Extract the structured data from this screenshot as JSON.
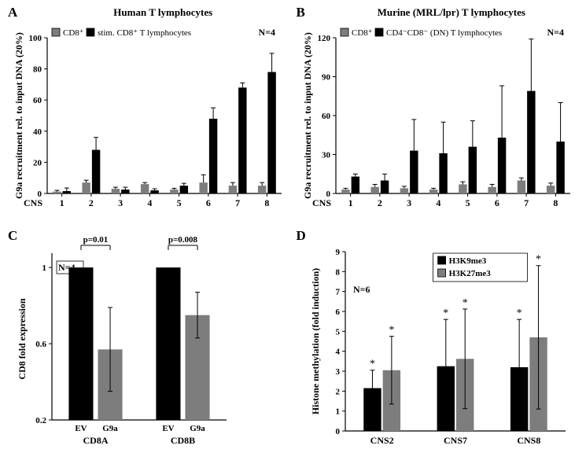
{
  "A": {
    "label": "A",
    "title": "Human T lymphocytes",
    "type": "bar",
    "y_title": "G9a recruitment rel. to input DNA (20%)",
    "x_title": "CNS",
    "categories": [
      "1",
      "2",
      "3",
      "4",
      "5",
      "6",
      "7",
      "8"
    ],
    "series1_name": "CD8⁺",
    "series2_name": "stim. CD8⁺ T lymphocytes",
    "series1_values": [
      1.2,
      7,
      3,
      6,
      2.5,
      7,
      5,
      5
    ],
    "series1_err": [
      0.8,
      1.5,
      1,
      1,
      0.8,
      5,
      2,
      2
    ],
    "series2_values": [
      1.5,
      28,
      2.5,
      2,
      5,
      48,
      68,
      78
    ],
    "series2_err": [
      2,
      8,
      1.5,
      1,
      1.5,
      7,
      3,
      12
    ],
    "ylim": [
      0,
      100
    ],
    "ytick_step": 20,
    "n_label": "N=4",
    "series1_color": "#7d7d7d",
    "series2_color": "#000000",
    "bg": "#ffffff",
    "axis_color": "#000000"
  },
  "B": {
    "label": "B",
    "title": "Murine (MRL/lpr) T lymphocytes",
    "type": "bar",
    "y_title": "G9a recruitment rel. to input DNA (20%)",
    "x_title": "CNS",
    "categories": [
      "1",
      "2",
      "3",
      "4",
      "5",
      "6",
      "7",
      "8"
    ],
    "series1_name": "CD8⁺",
    "series2_name": "CD4⁻CD8⁻ (DN) T lymphocytes",
    "series1_values": [
      3,
      5,
      4,
      3,
      7,
      5,
      10,
      6
    ],
    "series1_err": [
      1,
      2,
      1.5,
      1,
      2,
      2,
      2,
      2
    ],
    "series2_values": [
      13,
      10,
      33,
      31,
      36,
      43,
      79,
      40
    ],
    "series2_err": [
      2,
      5,
      24,
      24,
      20,
      40,
      40,
      30
    ],
    "ylim": [
      0,
      120
    ],
    "ytick_step": 30,
    "n_label": "N=4",
    "series1_color": "#7d7d7d",
    "series2_color": "#000000",
    "bg": "#ffffff",
    "axis_color": "#000000"
  },
  "C": {
    "label": "C",
    "type": "bar",
    "y_title": "CD8 fold expression",
    "categories": [
      "CD8A",
      "CD8B"
    ],
    "sub_categories": [
      "EV",
      "G9a"
    ],
    "values": [
      [
        1.0,
        0.57
      ],
      [
        1.0,
        0.75
      ]
    ],
    "err": [
      [
        0,
        0.22
      ],
      [
        0,
        0.12
      ]
    ],
    "colors": [
      "#000000",
      "#7d7d7d"
    ],
    "p_values": [
      "p=0.01",
      "p=0.008"
    ],
    "ylim": [
      0.2,
      1.05
    ],
    "yticks": [
      0.2,
      0.6,
      1.0
    ],
    "n_label": "N=4",
    "bg": "#ffffff",
    "axis_color": "#000000"
  },
  "D": {
    "label": "D",
    "type": "bar",
    "y_title": "Histone methylation (fold induction)",
    "categories": [
      "CNS2",
      "CNS7",
      "CNS8"
    ],
    "series1_name": "H3K9me3",
    "series2_name": "H3K27me3",
    "series1_values": [
      2.15,
      3.25,
      3.2
    ],
    "series1_err": [
      0.9,
      2.35,
      2.4
    ],
    "series2_values": [
      3.05,
      3.62,
      4.7
    ],
    "series2_err": [
      1.7,
      2.5,
      3.6
    ],
    "star": "*",
    "ylim": [
      0,
      9
    ],
    "yticks": [
      0,
      1,
      2,
      3,
      4,
      5,
      6,
      7,
      8,
      9
    ],
    "n_label": "N=6",
    "series1_color": "#000000",
    "series2_color": "#7d7d7d",
    "bg": "#ffffff",
    "axis_color": "#000000"
  }
}
